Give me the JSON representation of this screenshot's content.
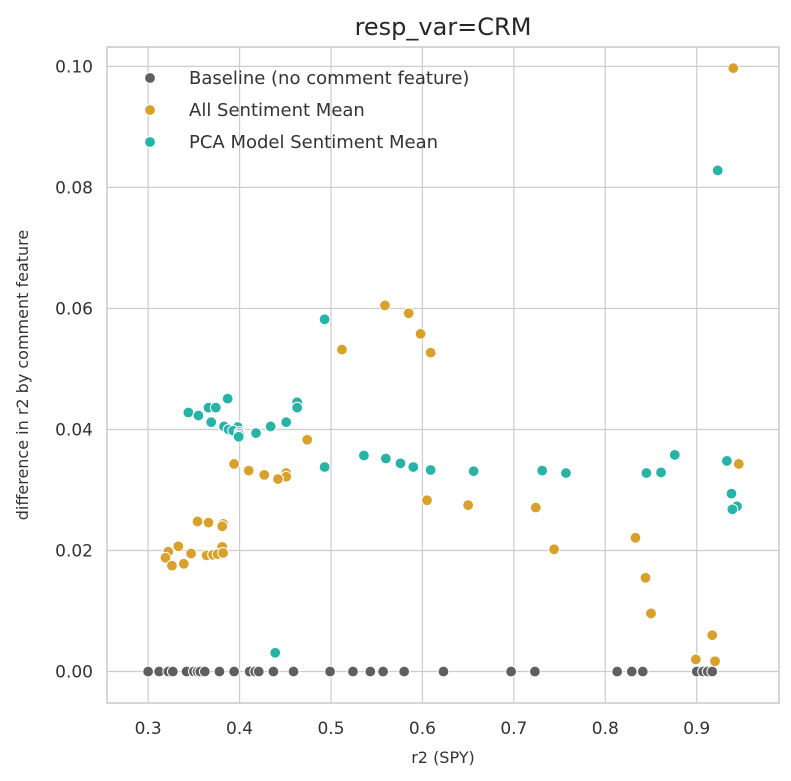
{
  "chart_data": {
    "type": "scatter",
    "title": "resp_var=CRM",
    "xlabel": "r2 (SPY)",
    "ylabel": "difference in r2 by comment feature",
    "xlim": [
      0.255,
      0.99
    ],
    "ylim": [
      -0.0052,
      0.1032
    ],
    "xticks": [
      0.3,
      0.4,
      0.5,
      0.6,
      0.7,
      0.8,
      0.9
    ],
    "xtick_labels": [
      "0.3",
      "0.4",
      "0.5",
      "0.6",
      "0.7",
      "0.8",
      "0.9"
    ],
    "yticks": [
      0.0,
      0.02,
      0.04,
      0.06,
      0.08,
      0.1
    ],
    "ytick_labels": [
      "0.00",
      "0.02",
      "0.04",
      "0.06",
      "0.08",
      "0.10"
    ],
    "grid": true,
    "legend_position": "top-left",
    "series": [
      {
        "name": "Baseline (no comment feature)",
        "color": "#5f5f5f",
        "points": [
          [
            0.3,
            0.0
          ],
          [
            0.312,
            0.0
          ],
          [
            0.322,
            0.0
          ],
          [
            0.327,
            0.0
          ],
          [
            0.342,
            0.0
          ],
          [
            0.35,
            0.0
          ],
          [
            0.354,
            0.0
          ],
          [
            0.357,
            0.0
          ],
          [
            0.362,
            0.0
          ],
          [
            0.378,
            0.0
          ],
          [
            0.394,
            0.0
          ],
          [
            0.411,
            0.0
          ],
          [
            0.417,
            0.0
          ],
          [
            0.421,
            0.0
          ],
          [
            0.437,
            0.0
          ],
          [
            0.459,
            0.0
          ],
          [
            0.499,
            0.0
          ],
          [
            0.524,
            0.0
          ],
          [
            0.543,
            0.0
          ],
          [
            0.557,
            0.0
          ],
          [
            0.58,
            0.0
          ],
          [
            0.623,
            0.0
          ],
          [
            0.697,
            0.0
          ],
          [
            0.723,
            0.0
          ],
          [
            0.813,
            0.0
          ],
          [
            0.829,
            0.0
          ],
          [
            0.841,
            0.0
          ],
          [
            0.9,
            0.0
          ],
          [
            0.907,
            0.0
          ],
          [
            0.912,
            0.0
          ],
          [
            0.917,
            0.0
          ]
        ]
      },
      {
        "name": "All Sentiment Mean",
        "color": "#d8a12b",
        "points": [
          [
            0.94,
            0.0997
          ],
          [
            0.559,
            0.0605
          ],
          [
            0.585,
            0.0592
          ],
          [
            0.598,
            0.0558
          ],
          [
            0.512,
            0.0532
          ],
          [
            0.609,
            0.0527
          ],
          [
            0.474,
            0.0383
          ],
          [
            0.394,
            0.0343
          ],
          [
            0.41,
            0.0332
          ],
          [
            0.427,
            0.0325
          ],
          [
            0.451,
            0.0328
          ],
          [
            0.451,
            0.0322
          ],
          [
            0.442,
            0.0318
          ],
          [
            0.946,
            0.0343
          ],
          [
            0.605,
            0.0283
          ],
          [
            0.65,
            0.0275
          ],
          [
            0.724,
            0.0271
          ],
          [
            0.354,
            0.0248
          ],
          [
            0.366,
            0.0246
          ],
          [
            0.382,
            0.0244
          ],
          [
            0.381,
            0.024
          ],
          [
            0.333,
            0.0207
          ],
          [
            0.322,
            0.0198
          ],
          [
            0.319,
            0.0188
          ],
          [
            0.381,
            0.0206
          ],
          [
            0.347,
            0.0195
          ],
          [
            0.364,
            0.0192
          ],
          [
            0.371,
            0.0193
          ],
          [
            0.376,
            0.0194
          ],
          [
            0.382,
            0.0196
          ],
          [
            0.326,
            0.0175
          ],
          [
            0.339,
            0.0178
          ],
          [
            0.744,
            0.0202
          ],
          [
            0.833,
            0.0221
          ],
          [
            0.844,
            0.0155
          ],
          [
            0.85,
            0.0096
          ],
          [
            0.917,
            0.006
          ],
          [
            0.899,
            0.002
          ],
          [
            0.92,
            0.0017
          ]
        ]
      },
      {
        "name": "PCA Model Sentiment Mean",
        "color": "#27b3a6",
        "points": [
          [
            0.923,
            0.0828
          ],
          [
            0.493,
            0.0582
          ],
          [
            0.387,
            0.0451
          ],
          [
            0.463,
            0.0445
          ],
          [
            0.463,
            0.0436
          ],
          [
            0.366,
            0.0436
          ],
          [
            0.374,
            0.0436
          ],
          [
            0.344,
            0.0428
          ],
          [
            0.355,
            0.0423
          ],
          [
            0.451,
            0.0412
          ],
          [
            0.369,
            0.0412
          ],
          [
            0.383,
            0.0405
          ],
          [
            0.398,
            0.0404
          ],
          [
            0.434,
            0.0405
          ],
          [
            0.388,
            0.04
          ],
          [
            0.393,
            0.0398
          ],
          [
            0.4,
            0.0396
          ],
          [
            0.418,
            0.0394
          ],
          [
            0.4,
            0.0393
          ],
          [
            0.4,
            0.039
          ],
          [
            0.399,
            0.0388
          ],
          [
            0.876,
            0.0358
          ],
          [
            0.536,
            0.0357
          ],
          [
            0.56,
            0.0352
          ],
          [
            0.576,
            0.0344
          ],
          [
            0.59,
            0.0338
          ],
          [
            0.933,
            0.0348
          ],
          [
            0.493,
            0.0338
          ],
          [
            0.609,
            0.0333
          ],
          [
            0.656,
            0.0331
          ],
          [
            0.731,
            0.0332
          ],
          [
            0.757,
            0.0328
          ],
          [
            0.845,
            0.0328
          ],
          [
            0.861,
            0.0329
          ],
          [
            0.938,
            0.0294
          ],
          [
            0.944,
            0.0273
          ],
          [
            0.939,
            0.0268
          ],
          [
            0.439,
            0.0031
          ]
        ]
      }
    ]
  }
}
